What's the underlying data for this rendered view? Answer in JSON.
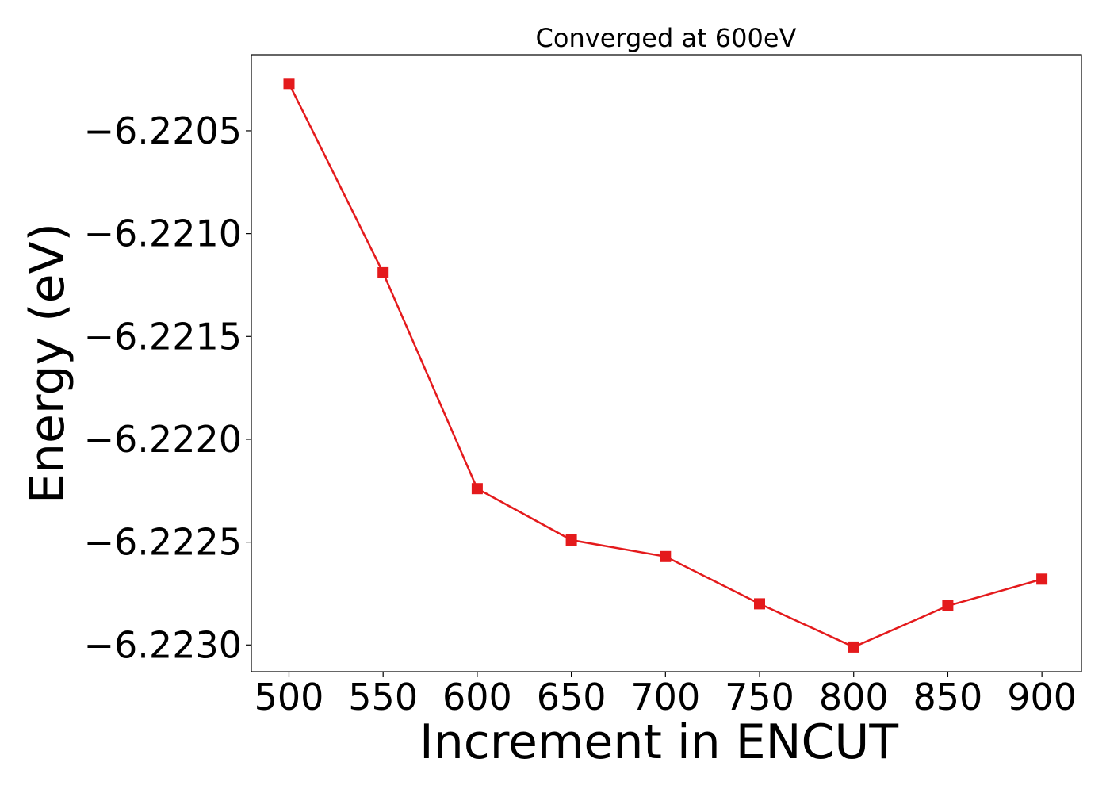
{
  "chart_data": {
    "type": "line",
    "title": "Converged at 600eV",
    "xlabel": "Increment in ENCUT",
    "ylabel": "Energy (eV)",
    "x": [
      500,
      550,
      600,
      650,
      700,
      750,
      800,
      850,
      900
    ],
    "series": [
      {
        "values": [
          -6.22027,
          -6.22119,
          -6.22224,
          -6.22249,
          -6.22257,
          -6.2228,
          -6.22301,
          -6.22281,
          -6.22268
        ],
        "color": "#e41a1c",
        "marker": "square"
      }
    ],
    "xticks": [
      500,
      550,
      600,
      650,
      700,
      750,
      800,
      850,
      900
    ],
    "xtick_labels": [
      "500",
      "550",
      "600",
      "650",
      "700",
      "750",
      "800",
      "850",
      "900"
    ],
    "yticks": [
      -6.2205,
      -6.221,
      -6.2215,
      -6.222,
      -6.2225,
      -6.223
    ],
    "ytick_labels": [
      "−6.2205",
      "−6.2210",
      "−6.2215",
      "−6.2220",
      "−6.2225",
      "−6.2230"
    ],
    "xlim": [
      480,
      921
    ],
    "ylim": [
      -6.22313,
      -6.22013
    ],
    "grid": false,
    "legend": "none"
  }
}
